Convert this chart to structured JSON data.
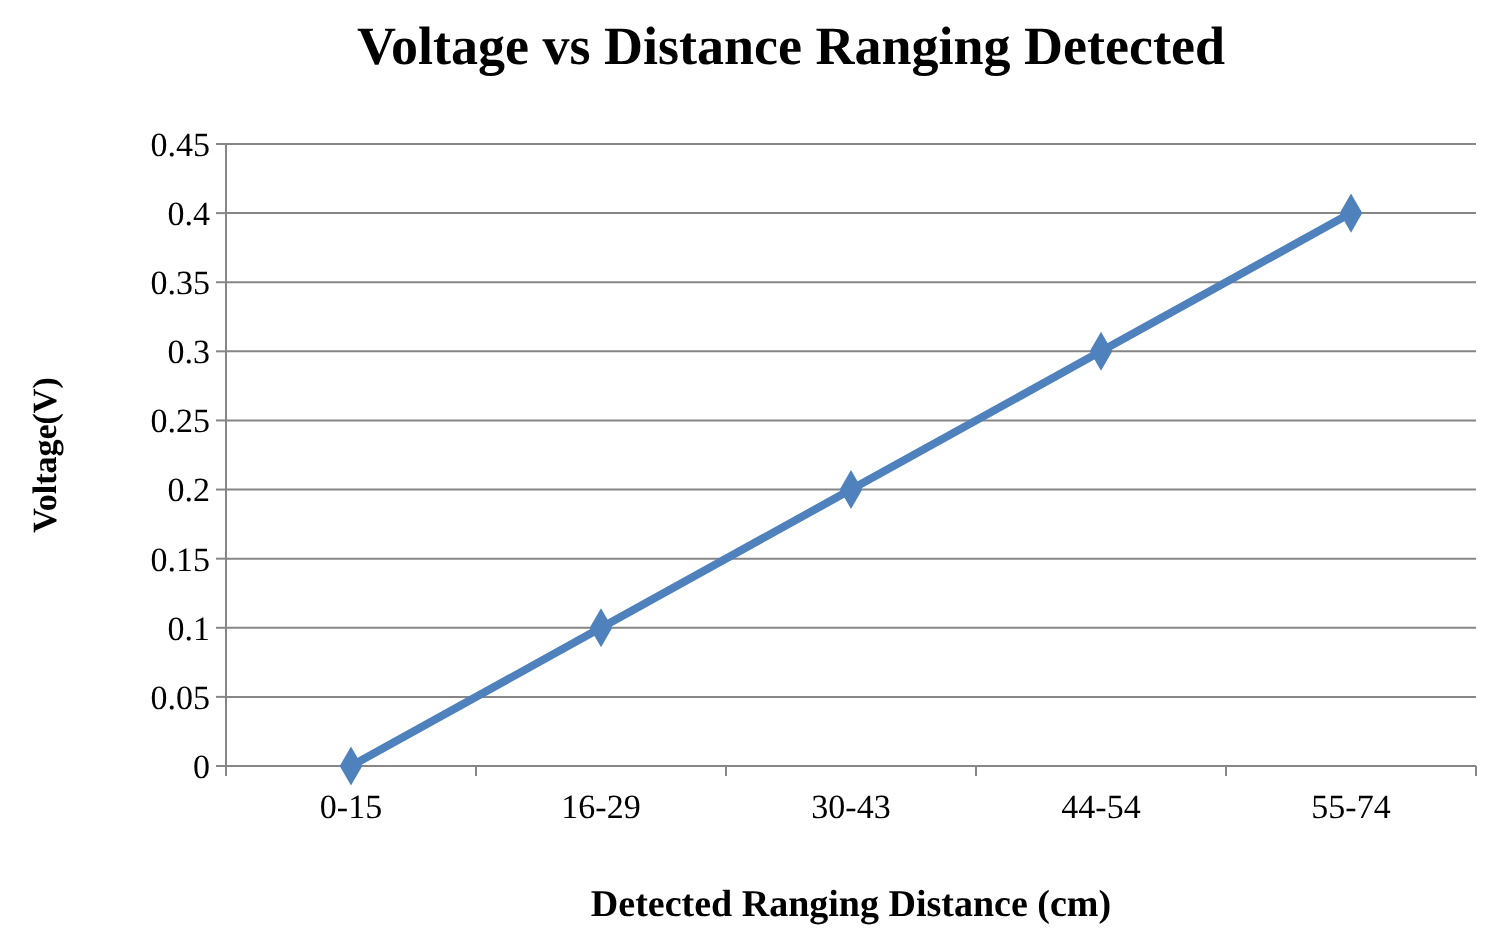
{
  "chart_data": {
    "type": "line",
    "title": "Voltage vs Distance Ranging Detected",
    "xlabel": "Detected Ranging Distance (cm)",
    "ylabel": "Voltage(V)",
    "categories": [
      "0-15",
      "16-29",
      "30-43",
      "44-54",
      "55-74"
    ],
    "series": [
      {
        "color": "#4f81bd",
        "values": [
          0,
          0.1,
          0.2,
          0.3,
          0.4
        ]
      }
    ],
    "ylim": [
      0,
      0.45
    ],
    "yticks": [
      0,
      0.05,
      0.1,
      0.15,
      0.2,
      0.25,
      0.3,
      0.35,
      0.4,
      0.45
    ],
    "grid": "y",
    "marker": "diamond",
    "line_style": "solid"
  }
}
